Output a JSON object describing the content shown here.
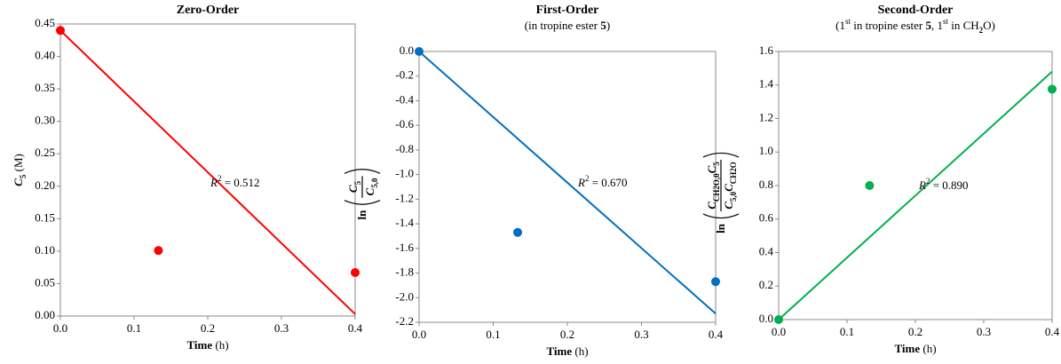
{
  "chart_data": [
    {
      "type": "scatter",
      "title": "Zero-Order",
      "x_label": [
        "Time",
        " (h)"
      ],
      "y_label": [
        "C",
        "5",
        " (M)"
      ],
      "x": [
        0,
        0.133,
        0.4
      ],
      "values": [
        0.44,
        0.101,
        0.067
      ],
      "color": "#ff0000",
      "trendline": {
        "x": [
          0,
          0.4
        ],
        "values": [
          0.44,
          0.003
        ]
      },
      "annotation": [
        "R",
        "2",
        " = 0.512"
      ],
      "xlim": [
        0,
        0.4
      ],
      "xticks": [
        {
          "value": 0,
          "label": "0.0"
        },
        0.1,
        0.2,
        0.3,
        0.4
      ],
      "ylim": [
        0,
        0.45
      ],
      "yticks": [
        {
          "value": 0,
          "label": "0.00"
        },
        0.05,
        {
          "value": 0.1,
          "label": "0.10"
        },
        0.15,
        {
          "value": 0.2,
          "label": "0.20"
        },
        0.25,
        {
          "value": 0.3,
          "label": "0.30"
        },
        0.35,
        {
          "value": 0.4,
          "label": "0.40"
        },
        0.45
      ]
    },
    {
      "type": "scatter",
      "title": "First-Order",
      "subtitle": [
        "(in tropine ester ",
        "5",
        ")"
      ],
      "x_label": [
        "Time",
        " (h)"
      ],
      "y_label": {
        "prefix": "ln",
        "numerator": [
          "C",
          "5"
        ],
        "denominator": [
          "C",
          "5,0"
        ]
      },
      "x": [
        0,
        0.133,
        0.4
      ],
      "values": [
        0,
        -1.47,
        -1.87
      ],
      "color": "#0070c0",
      "trendline": {
        "x": [
          0,
          0.4
        ],
        "values": [
          0,
          -2.13
        ]
      },
      "annotation": [
        "R",
        "2",
        " = 0.670"
      ],
      "xlim": [
        0,
        0.4
      ],
      "xticks": [
        {
          "value": 0,
          "label": "0.0"
        },
        0.1,
        0.2,
        0.3,
        0.4
      ],
      "ylim": [
        -2.2,
        0
      ],
      "yticks": [
        {
          "value": -2.2,
          "label": "-2.2"
        },
        {
          "value": -2,
          "label": "-2.0"
        },
        -1.8,
        -1.6,
        -1.4,
        -1.2,
        {
          "value": -1,
          "label": "-1.0"
        },
        -0.8,
        -0.6,
        -0.4,
        -0.2,
        {
          "value": 0,
          "label": "0.0"
        }
      ]
    },
    {
      "type": "scatter",
      "title": "Second-Order",
      "subtitle": [
        "(1",
        "st",
        " in tropine ester ",
        "5",
        ", 1",
        "st",
        " in CH",
        "2",
        "O)"
      ],
      "x_label": [
        "Time",
        " (h)"
      ],
      "y_label": {
        "prefix": "ln",
        "numerator": [
          "C",
          "CH",
          "2",
          "O,0",
          "C",
          "5"
        ],
        "denominator": [
          "C",
          "5,0",
          "C",
          "CH",
          "2",
          "O"
        ]
      },
      "x": [
        0,
        0.133,
        0.4
      ],
      "values": [
        0,
        0.8,
        1.375
      ],
      "color": "#00b050",
      "trendline": {
        "x": [
          0,
          0.4
        ],
        "values": [
          0,
          1.48
        ]
      },
      "annotation": [
        "R",
        "2",
        " = 0.890"
      ],
      "xlim": [
        0,
        0.4
      ],
      "xticks": [
        {
          "value": 0,
          "label": "0.0"
        },
        0.1,
        0.2,
        0.3,
        0.4
      ],
      "ylim": [
        0,
        1.6
      ],
      "yticks": [
        {
          "value": 0,
          "label": "0.0"
        },
        0.2,
        0.4,
        0.6,
        0.8,
        {
          "value": 1,
          "label": "1.0"
        },
        1.2,
        1.4,
        1.6
      ]
    }
  ]
}
